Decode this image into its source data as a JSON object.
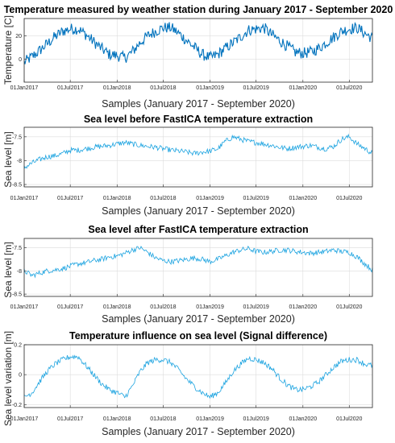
{
  "chart_data": [
    {
      "type": "line",
      "title": "Temperature measured by weather station during January 2017 - September 2020",
      "xlabel": "Samples (January 2017 - September 2020)",
      "ylabel": "Temperature [C]",
      "x_range": [
        "2017-01-01",
        "2020-09-30"
      ],
      "x_ticks": [
        "01Jan2017",
        "01Jul2017",
        "01Jan2018",
        "01Jul2018",
        "01Jan2019",
        "01Jul2019",
        "01Jan2020",
        "01Jul2020"
      ],
      "ylim": [
        -20,
        35
      ],
      "y_ticks": [
        0,
        20
      ],
      "grid": true,
      "series": [
        {
          "color": "#0072bd",
          "points": [
            [
              "2017-01-01",
              -3
            ],
            [
              "2017-02-01",
              2
            ],
            [
              "2017-03-01",
              7
            ],
            [
              "2017-04-01",
              13
            ],
            [
              "2017-05-01",
              19
            ],
            [
              "2017-06-01",
              24
            ],
            [
              "2017-07-01",
              26
            ],
            [
              "2017-08-01",
              26
            ],
            [
              "2017-09-01",
              21
            ],
            [
              "2017-10-01",
              15
            ],
            [
              "2017-11-01",
              9
            ],
            [
              "2017-12-01",
              4
            ],
            [
              "2018-01-01",
              3
            ],
            [
              "2018-02-01",
              1
            ],
            [
              "2018-03-01",
              6
            ],
            [
              "2018-04-01",
              14
            ],
            [
              "2018-05-01",
              20
            ],
            [
              "2018-06-01",
              24
            ],
            [
              "2018-07-01",
              27
            ],
            [
              "2018-08-01",
              27
            ],
            [
              "2018-09-01",
              22
            ],
            [
              "2018-10-01",
              16
            ],
            [
              "2018-11-01",
              10
            ],
            [
              "2018-12-01",
              4
            ],
            [
              "2019-01-01",
              1
            ],
            [
              "2019-02-01",
              4
            ],
            [
              "2019-03-01",
              9
            ],
            [
              "2019-04-01",
              14
            ],
            [
              "2019-05-01",
              19
            ],
            [
              "2019-06-01",
              25
            ],
            [
              "2019-07-01",
              26
            ],
            [
              "2019-08-01",
              27
            ],
            [
              "2019-09-01",
              21
            ],
            [
              "2019-10-01",
              16
            ],
            [
              "2019-11-01",
              11
            ],
            [
              "2019-12-01",
              6
            ],
            [
              "2020-01-01",
              5
            ],
            [
              "2020-02-01",
              6
            ],
            [
              "2020-03-01",
              9
            ],
            [
              "2020-04-01",
              14
            ],
            [
              "2020-05-01",
              19
            ],
            [
              "2020-06-01",
              24
            ],
            [
              "2020-07-01",
              26
            ],
            [
              "2020-08-01",
              27
            ],
            [
              "2020-09-01",
              22
            ],
            [
              "2020-09-30",
              18
            ]
          ]
        }
      ]
    },
    {
      "type": "line",
      "title": "Sea level before FastICA temperature extraction",
      "xlabel": "Samples (January 2017 - September 2020)",
      "ylabel": "Sea level [m]",
      "x_range": [
        "2017-01-01",
        "2020-09-30"
      ],
      "x_ticks": [
        "01Jan2017",
        "01Jul2017",
        "01Jan2018",
        "01Jul2018",
        "01Jan2019",
        "01Jul2019",
        "01Jan2020",
        "01Jul2020"
      ],
      "ylim": [
        -8.55,
        -7.3
      ],
      "y_ticks": [
        -8.5,
        -8,
        -7.5
      ],
      "grid": true,
      "series": [
        {
          "color": "#1ba3e0",
          "points": [
            [
              "2017-01-01",
              -8.15
            ],
            [
              "2017-02-01",
              -8.05
            ],
            [
              "2017-03-01",
              -7.98
            ],
            [
              "2017-04-01",
              -7.92
            ],
            [
              "2017-05-01",
              -7.9
            ],
            [
              "2017-06-01",
              -7.85
            ],
            [
              "2017-07-01",
              -7.78
            ],
            [
              "2017-08-01",
              -7.78
            ],
            [
              "2017-09-01",
              -7.75
            ],
            [
              "2017-10-01",
              -7.72
            ],
            [
              "2017-11-01",
              -7.7
            ],
            [
              "2017-12-01",
              -7.68
            ],
            [
              "2018-01-01",
              -7.65
            ],
            [
              "2018-02-01",
              -7.62
            ],
            [
              "2018-03-01",
              -7.65
            ],
            [
              "2018-04-01",
              -7.68
            ],
            [
              "2018-05-01",
              -7.7
            ],
            [
              "2018-06-01",
              -7.72
            ],
            [
              "2018-07-01",
              -7.75
            ],
            [
              "2018-08-01",
              -7.78
            ],
            [
              "2018-09-01",
              -7.8
            ],
            [
              "2018-10-01",
              -7.82
            ],
            [
              "2018-11-01",
              -7.85
            ],
            [
              "2018-12-01",
              -7.82
            ],
            [
              "2019-01-01",
              -7.8
            ],
            [
              "2019-02-01",
              -7.75
            ],
            [
              "2019-03-01",
              -7.6
            ],
            [
              "2019-04-01",
              -7.5
            ],
            [
              "2019-05-01",
              -7.55
            ],
            [
              "2019-06-01",
              -7.6
            ],
            [
              "2019-07-01",
              -7.62
            ],
            [
              "2019-08-01",
              -7.65
            ],
            [
              "2019-09-01",
              -7.68
            ],
            [
              "2019-10-01",
              -7.72
            ],
            [
              "2019-11-01",
              -7.75
            ],
            [
              "2019-12-01",
              -7.72
            ],
            [
              "2020-01-01",
              -7.7
            ],
            [
              "2020-02-01",
              -7.68
            ],
            [
              "2020-03-01",
              -7.72
            ],
            [
              "2020-04-01",
              -7.75
            ],
            [
              "2020-05-01",
              -7.7
            ],
            [
              "2020-06-01",
              -7.55
            ],
            [
              "2020-07-01",
              -7.5
            ],
            [
              "2020-08-01",
              -7.65
            ],
            [
              "2020-09-01",
              -7.75
            ],
            [
              "2020-09-30",
              -7.85
            ]
          ]
        }
      ]
    },
    {
      "type": "line",
      "title": "Sea level after FastICA temperature extraction",
      "xlabel": "Samples (January 2017 - September 2020)",
      "ylabel": "Sea level [m]",
      "x_range": [
        "2017-01-01",
        "2020-09-30"
      ],
      "x_ticks": [
        "01Jan2017",
        "01Jul2017",
        "01Jan2018",
        "01Jul2018",
        "01Jan2019",
        "01Jul2019",
        "01Jan2020",
        "01Jul2020"
      ],
      "ylim": [
        -8.55,
        -7.3
      ],
      "y_ticks": [
        -8.5,
        -8,
        -7.5
      ],
      "grid": true,
      "series": [
        {
          "color": "#1ba3e0",
          "points": [
            [
              "2017-01-01",
              -8.0
            ],
            [
              "2017-02-01",
              -8.1
            ],
            [
              "2017-03-01",
              -8.05
            ],
            [
              "2017-04-01",
              -8.0
            ],
            [
              "2017-05-01",
              -7.98
            ],
            [
              "2017-06-01",
              -7.95
            ],
            [
              "2017-07-01",
              -7.9
            ],
            [
              "2017-08-01",
              -7.85
            ],
            [
              "2017-09-01",
              -7.82
            ],
            [
              "2017-10-01",
              -7.78
            ],
            [
              "2017-11-01",
              -7.75
            ],
            [
              "2017-12-01",
              -7.7
            ],
            [
              "2018-01-01",
              -7.68
            ],
            [
              "2018-02-01",
              -7.62
            ],
            [
              "2018-03-01",
              -7.55
            ],
            [
              "2018-04-01",
              -7.5
            ],
            [
              "2018-05-01",
              -7.6
            ],
            [
              "2018-06-01",
              -7.72
            ],
            [
              "2018-07-01",
              -7.78
            ],
            [
              "2018-08-01",
              -7.8
            ],
            [
              "2018-09-01",
              -7.78
            ],
            [
              "2018-10-01",
              -7.75
            ],
            [
              "2018-11-01",
              -7.72
            ],
            [
              "2018-12-01",
              -7.75
            ],
            [
              "2019-01-01",
              -7.8
            ],
            [
              "2019-02-01",
              -7.75
            ],
            [
              "2019-03-01",
              -7.68
            ],
            [
              "2019-04-01",
              -7.6
            ],
            [
              "2019-05-01",
              -7.55
            ],
            [
              "2019-06-01",
              -7.52
            ],
            [
              "2019-07-01",
              -7.58
            ],
            [
              "2019-08-01",
              -7.6
            ],
            [
              "2019-09-01",
              -7.58
            ],
            [
              "2019-10-01",
              -7.55
            ],
            [
              "2019-11-01",
              -7.55
            ],
            [
              "2019-12-01",
              -7.58
            ],
            [
              "2020-01-01",
              -7.6
            ],
            [
              "2020-02-01",
              -7.62
            ],
            [
              "2020-03-01",
              -7.6
            ],
            [
              "2020-04-01",
              -7.58
            ],
            [
              "2020-05-01",
              -7.55
            ],
            [
              "2020-06-01",
              -7.58
            ],
            [
              "2020-07-01",
              -7.6
            ],
            [
              "2020-08-01",
              -7.7
            ],
            [
              "2020-09-01",
              -7.85
            ],
            [
              "2020-09-30",
              -7.98
            ]
          ]
        }
      ]
    },
    {
      "type": "line",
      "title": "Temperature influence on sea level (Signal difference)",
      "xlabel": "Samples (January 2017 - September 2020)",
      "ylabel": "Sea level variation [m]",
      "x_range": [
        "2017-01-01",
        "2020-09-30"
      ],
      "x_ticks": [
        "01Jan2017",
        "01Jul2017",
        "01Jan2018",
        "01Jul2018",
        "01Jan2019",
        "01Jul2019",
        "01Jan2020",
        "01Jul2020"
      ],
      "ylim": [
        -0.22,
        0.2
      ],
      "y_ticks": [
        -0.2,
        0,
        0.2
      ],
      "grid": true,
      "series": [
        {
          "color": "#1ba3e0",
          "points": [
            [
              "2017-01-01",
              -0.15
            ],
            [
              "2017-02-01",
              -0.12
            ],
            [
              "2017-03-01",
              -0.05
            ],
            [
              "2017-04-01",
              0.02
            ],
            [
              "2017-05-01",
              0.07
            ],
            [
              "2017-06-01",
              0.1
            ],
            [
              "2017-07-01",
              0.12
            ],
            [
              "2017-08-01",
              0.12
            ],
            [
              "2017-09-01",
              0.06
            ],
            [
              "2017-10-01",
              0.0
            ],
            [
              "2017-11-01",
              -0.06
            ],
            [
              "2017-12-01",
              -0.1
            ],
            [
              "2018-01-01",
              -0.12
            ],
            [
              "2018-02-01",
              -0.15
            ],
            [
              "2018-03-01",
              -0.08
            ],
            [
              "2018-04-01",
              0.02
            ],
            [
              "2018-05-01",
              0.08
            ],
            [
              "2018-06-01",
              0.1
            ],
            [
              "2018-07-01",
              0.1
            ],
            [
              "2018-08-01",
              0.08
            ],
            [
              "2018-09-01",
              0.03
            ],
            [
              "2018-10-01",
              -0.03
            ],
            [
              "2018-11-01",
              -0.08
            ],
            [
              "2018-12-01",
              -0.12
            ],
            [
              "2019-01-01",
              -0.15
            ],
            [
              "2019-02-01",
              -0.12
            ],
            [
              "2019-03-01",
              -0.06
            ],
            [
              "2019-04-01",
              0.02
            ],
            [
              "2019-05-01",
              0.07
            ],
            [
              "2019-06-01",
              0.11
            ],
            [
              "2019-07-01",
              0.1
            ],
            [
              "2019-08-01",
              0.08
            ],
            [
              "2019-09-01",
              0.04
            ],
            [
              "2019-10-01",
              -0.02
            ],
            [
              "2019-11-01",
              -0.07
            ],
            [
              "2019-12-01",
              -0.1
            ],
            [
              "2020-01-01",
              -0.1
            ],
            [
              "2020-02-01",
              -0.08
            ],
            [
              "2020-03-01",
              -0.05
            ],
            [
              "2020-04-01",
              0.0
            ],
            [
              "2020-05-01",
              0.05
            ],
            [
              "2020-06-01",
              0.09
            ],
            [
              "2020-07-01",
              0.1
            ],
            [
              "2020-08-01",
              0.1
            ],
            [
              "2020-09-01",
              0.07
            ],
            [
              "2020-09-30",
              0.06
            ]
          ]
        }
      ]
    }
  ]
}
